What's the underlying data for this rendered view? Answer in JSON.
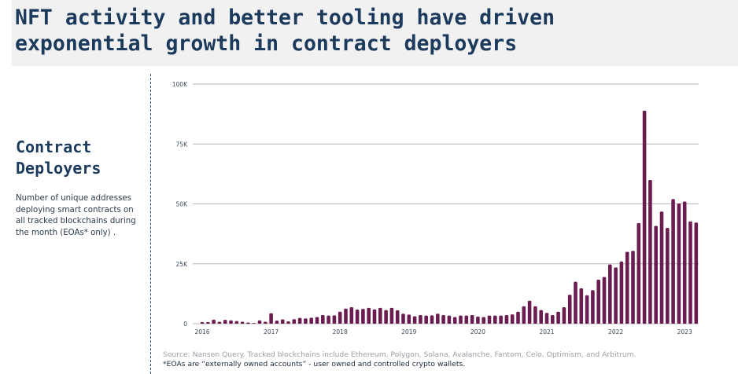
{
  "header": {
    "title_line1": "NFT activity and better tooling have driven",
    "title_line2": "exponential growth in contract deployers"
  },
  "sidebar": {
    "title_line1": "Contract",
    "title_line2": "Deployers",
    "description": "Number of unique addresses deploying smart contracts on all tracked blockchains during the month (EOAs* only) ."
  },
  "footer": {
    "source": "Source: Nansen Query. Tracked blockchains include Ethereum, Polygon, Solana, Avalanche, Fantom, Celo, Optimism, and Arbitrum.",
    "note": "*EOAs are “externally owned accounts” - user owned and controlled crypto wallets."
  },
  "colors": {
    "bar": "#6b1d52",
    "grid": "#b5b5b5",
    "title": "#1b3a5c"
  },
  "chart_data": {
    "type": "bar",
    "title": "Contract Deployers",
    "xlabel": "",
    "ylabel": "",
    "ylim": [
      0,
      100000
    ],
    "yticks": [
      0,
      25000,
      50000,
      75000,
      100000
    ],
    "ytick_labels": [
      "0",
      "25K",
      "50K",
      "75K",
      "100K"
    ],
    "xtick_labels": [
      "2016",
      "2017",
      "2018",
      "2019",
      "2020",
      "2021",
      "2022",
      "2023"
    ],
    "grid": true,
    "start": "2016-01",
    "frequency": "monthly",
    "values": [
      700,
      700,
      1700,
      800,
      1600,
      1400,
      1100,
      800,
      500,
      300,
      1400,
      800,
      4400,
      1300,
      1800,
      1000,
      1900,
      2400,
      2200,
      2500,
      2800,
      3600,
      3400,
      3500,
      5000,
      6300,
      6900,
      5900,
      6200,
      6600,
      6000,
      6600,
      5700,
      6600,
      5600,
      4200,
      3800,
      3100,
      3600,
      3400,
      3500,
      4200,
      3600,
      3400,
      2800,
      3400,
      3400,
      3600,
      3000,
      2800,
      3400,
      3400,
      3400,
      3600,
      3900,
      5000,
      7300,
      9600,
      7300,
      5700,
      4500,
      3600,
      5000,
      6900,
      12100,
      17500,
      14800,
      11900,
      14000,
      18400,
      19500,
      24700,
      23500,
      26000,
      30000,
      30400,
      42000,
      88900,
      60000,
      40800,
      46800,
      40000,
      52000,
      50200,
      51000,
      42700,
      42200
    ]
  }
}
